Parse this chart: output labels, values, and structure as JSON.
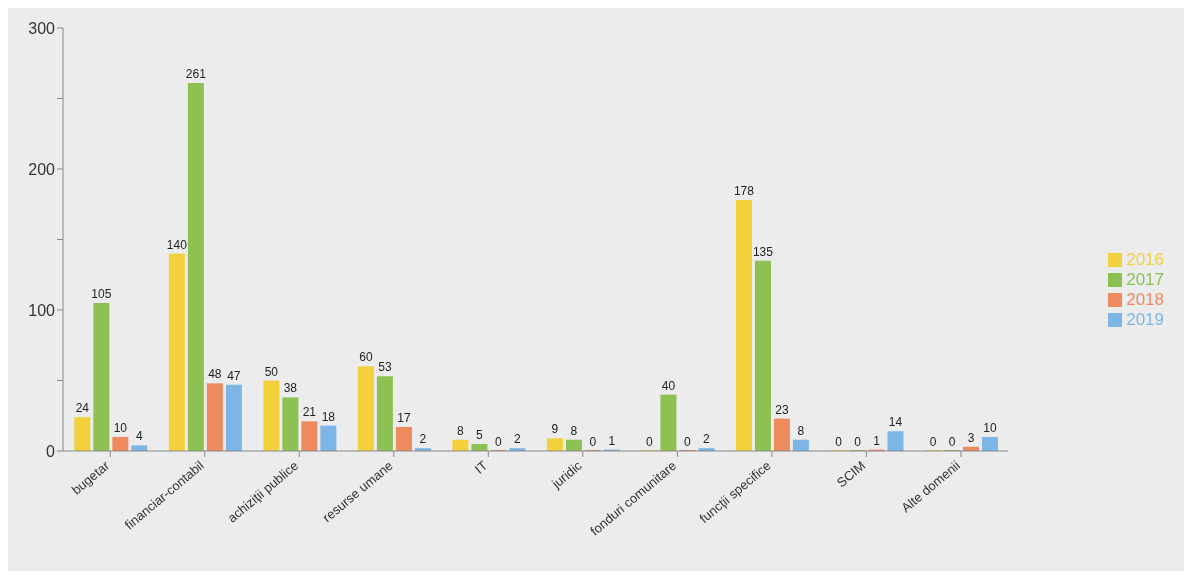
{
  "chart_data": {
    "type": "bar",
    "categories": [
      "bugetar",
      "financiar-contabil",
      "achiziţii publice",
      "resurse umane",
      "IT",
      "juridic",
      "fonduri comunitare",
      "funcţii specifice",
      "SCIM",
      "Alte domenii"
    ],
    "series": [
      {
        "name": "2016",
        "color": "#f2d13c",
        "values": [
          24,
          140,
          50,
          60,
          8,
          9,
          0,
          178,
          0,
          0
        ]
      },
      {
        "name": "2017",
        "color": "#8dc153",
        "values": [
          105,
          261,
          38,
          53,
          5,
          8,
          40,
          135,
          0,
          0
        ]
      },
      {
        "name": "2018",
        "color": "#ee8a5e",
        "values": [
          10,
          48,
          21,
          17,
          0,
          0,
          0,
          23,
          1,
          3
        ]
      },
      {
        "name": "2019",
        "color": "#7db6e6",
        "values": [
          4,
          47,
          18,
          2,
          2,
          1,
          2,
          8,
          14,
          10
        ]
      }
    ],
    "ylim": [
      0,
      300
    ],
    "yticks": [
      0,
      {
        "value": 50,
        "label": null
      },
      100,
      {
        "value": 150,
        "label": null
      },
      200,
      {
        "value": 250,
        "label": null
      },
      300
    ],
    "legend": "right",
    "data_labels": true
  }
}
